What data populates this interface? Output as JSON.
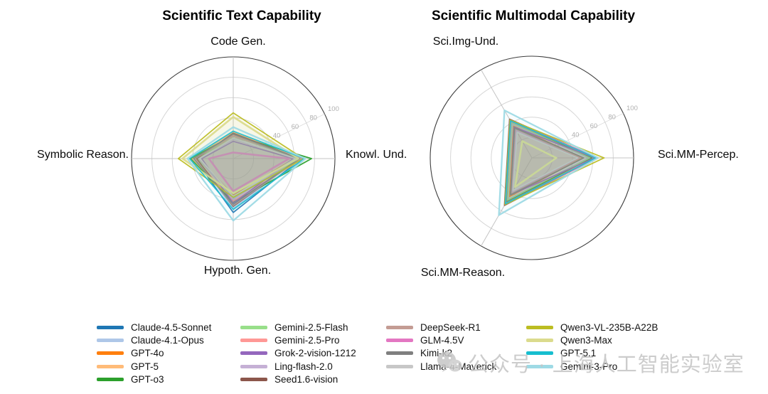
{
  "figure": {
    "background": "#ffffff",
    "watermark": {
      "text": "公众号 · 上海人工智能实验室",
      "color": "#c4c4c4",
      "icon": "wechat-icon"
    }
  },
  "legend": {
    "columns": [
      5,
      5,
      4,
      4
    ],
    "items": [
      {
        "label": "Claude-4.5-Sonnet",
        "color": "#1f77b4"
      },
      {
        "label": "Claude-4.1-Opus",
        "color": "#aec7e8"
      },
      {
        "label": "GPT-4o",
        "color": "#ff7f0e"
      },
      {
        "label": "GPT-5",
        "color": "#ffbb78"
      },
      {
        "label": "GPT-o3",
        "color": "#2ca02c"
      },
      {
        "label": "Gemini-2.5-Flash",
        "color": "#98df8a"
      },
      {
        "label": "Gemini-2.5-Pro",
        "color": "#ff9896"
      },
      {
        "label": "Grok-2-vision-1212",
        "color": "#9467bd"
      },
      {
        "label": "Ling-flash-2.0",
        "color": "#c5b0d5"
      },
      {
        "label": "Seed1.6-vision",
        "color": "#8c564b"
      },
      {
        "label": "DeepSeek-R1",
        "color": "#c49c94"
      },
      {
        "label": "GLM-4.5V",
        "color": "#e377c2"
      },
      {
        "label": "Kimi-k2",
        "color": "#7f7f7f"
      },
      {
        "label": "Llama-4-Maverick",
        "color": "#c7c7c7"
      },
      {
        "label": "Qwen3-VL-235B-A22B",
        "color": "#bcbd22"
      },
      {
        "label": "Qwen3-Max",
        "color": "#dbdb8d"
      },
      {
        "label": "GPT-5.1",
        "color": "#17becf"
      },
      {
        "label": "Gemini-3-Pro",
        "color": "#9edae5"
      }
    ]
  },
  "chart_data": [
    {
      "type": "radar",
      "title": "Scientific Text Capability",
      "axes": [
        "Code Gen.",
        "Knowl. Und.",
        "Hypoth. Gen.",
        "Symbolic Reason."
      ],
      "angles_deg": [
        90,
        0,
        270,
        180
      ],
      "rlim": [
        0,
        100
      ],
      "rticks": [
        20,
        40,
        60,
        80,
        100
      ],
      "tick_angle_deg": 26,
      "grid": true,
      "series": [
        {
          "name": "Claude-4.5-Sonnet",
          "values": [
            24,
            67,
            53,
            38
          ]
        },
        {
          "name": "Claude-4.1-Opus",
          "values": [
            22,
            64,
            49,
            36
          ]
        },
        {
          "name": "GPT-4o",
          "values": [
            20,
            60,
            36,
            34
          ]
        },
        {
          "name": "GPT-5",
          "values": [
            26,
            69,
            42,
            41
          ]
        },
        {
          "name": "GPT-o3",
          "values": [
            23,
            77,
            43,
            42
          ]
        },
        {
          "name": "Gemini-2.5-Flash",
          "values": [
            22,
            65,
            39,
            35
          ]
        },
        {
          "name": "Gemini-2.5-Pro",
          "values": [
            23,
            68,
            42,
            37
          ]
        },
        {
          "name": "Grok-2-vision-1212",
          "values": [
            17,
            59,
            44,
            31
          ]
        },
        {
          "name": "Ling-flash-2.0",
          "values": [
            19,
            63,
            40,
            34
          ]
        },
        {
          "name": "Seed1.6-vision",
          "values": [
            25,
            65,
            47,
            36
          ]
        },
        {
          "name": "DeepSeek-R1",
          "values": [
            22,
            66,
            46,
            38
          ]
        },
        {
          "name": "GLM-4.5V",
          "values": [
            6,
            55,
            32,
            24
          ],
          "lw": 2.6
        },
        {
          "name": "Kimi-k2",
          "values": [
            24,
            65,
            45,
            39
          ]
        },
        {
          "name": "Llama-4-Maverick",
          "values": [
            20,
            61,
            37,
            33
          ]
        },
        {
          "name": "Qwen3-VL-235B-A22B",
          "values": [
            45,
            69,
            38,
            54
          ]
        },
        {
          "name": "Qwen3-Max",
          "values": [
            41,
            64,
            34,
            50
          ],
          "lw": 2.6
        },
        {
          "name": "GPT-5.1",
          "values": [
            27,
            70,
            50,
            43
          ]
        },
        {
          "name": "Gemini-3-Pro",
          "values": [
            31,
            71,
            61,
            45
          ],
          "lw": 2.3
        }
      ]
    },
    {
      "type": "radar",
      "title": "Scientific Multimodal Capability",
      "axes": [
        "Sci.Img-Und.",
        "Sci.MM-Percep.",
        "Sci.MM-Reason."
      ],
      "angles_deg": [
        120,
        0,
        240
      ],
      "rlim": [
        0,
        100
      ],
      "rticks": [
        20,
        40,
        60,
        80,
        100
      ],
      "tick_angle_deg": 26,
      "grid": true,
      "series": [
        {
          "name": "Claude-4.5-Sonnet",
          "values": [
            40,
            58,
            49
          ]
        },
        {
          "name": "Claude-4.1-Opus",
          "values": [
            38,
            56,
            47
          ]
        },
        {
          "name": "GPT-4o",
          "values": [
            36,
            50,
            44
          ]
        },
        {
          "name": "GPT-5",
          "values": [
            42,
            61,
            51
          ]
        },
        {
          "name": "GPT-o3",
          "values": [
            41,
            59,
            50
          ]
        },
        {
          "name": "Gemini-2.5-Flash",
          "values": [
            40,
            57,
            48
          ]
        },
        {
          "name": "Gemini-2.5-Pro",
          "values": [
            43,
            63,
            52
          ]
        },
        {
          "name": "Grok-2-vision-1212",
          "values": [
            35,
            62,
            42
          ]
        },
        {
          "name": "Ling-flash-2.0",
          "values": [
            31,
            46,
            39
          ]
        },
        {
          "name": "Seed1.6-vision",
          "values": [
            44,
            64,
            54
          ]
        },
        {
          "name": "DeepSeek-R1",
          "values": [
            33,
            48,
            41
          ]
        },
        {
          "name": "GLM-4.5V",
          "values": [
            42,
            64,
            52
          ],
          "lw": 2.6
        },
        {
          "name": "Kimi-k2",
          "values": [
            34,
            51,
            42
          ]
        },
        {
          "name": "Llama-4-Maverick",
          "values": [
            29,
            45,
            37
          ]
        },
        {
          "name": "Qwen3-VL-235B-A22B",
          "values": [
            43,
            71,
            53
          ]
        },
        {
          "name": "Qwen3-Max",
          "values": [
            19,
            24,
            33
          ],
          "lw": 2.6
        },
        {
          "name": "GPT-5.1",
          "values": [
            42,
            63,
            52
          ]
        },
        {
          "name": "Gemini-3-Pro",
          "values": [
            54,
            65,
            65
          ],
          "lw": 2.3
        }
      ]
    }
  ]
}
